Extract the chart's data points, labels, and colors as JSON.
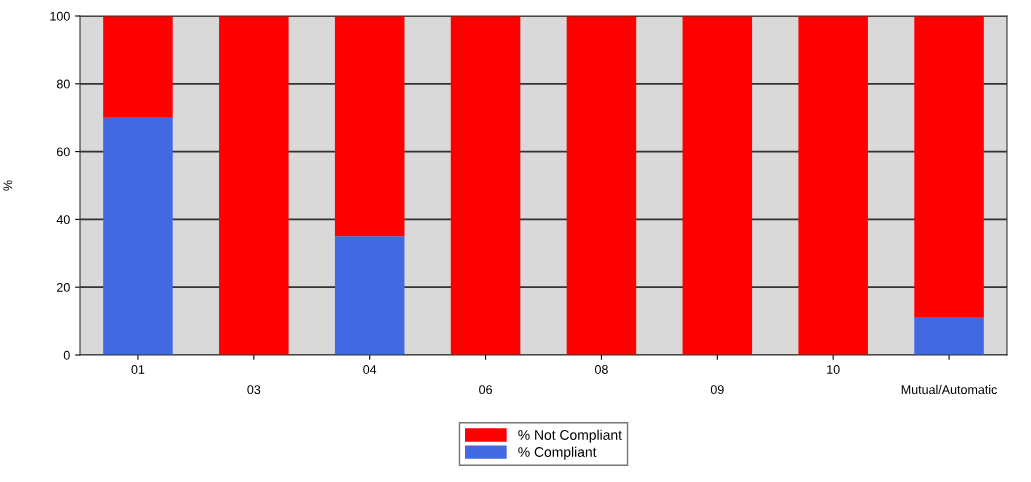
{
  "chart_data": {
    "type": "bar",
    "stacked": true,
    "ylabel": "%",
    "categories": [
      "01",
      "03",
      "04",
      "06",
      "08",
      "09",
      "10",
      "Mutual/Automatic"
    ],
    "series": [
      {
        "name": "% Compliant",
        "color": "#4169e1",
        "values": [
          70,
          0,
          35,
          0,
          0,
          0,
          0,
          11
        ]
      },
      {
        "name": "% Not Compliant",
        "color": "#ff0000",
        "values": [
          30,
          100,
          65,
          100,
          100,
          100,
          100,
          89
        ]
      }
    ],
    "ylim": [
      0,
      100
    ],
    "yticks": [
      0,
      20,
      40,
      60,
      80,
      100
    ],
    "grid": "y",
    "legend": "bottom"
  }
}
